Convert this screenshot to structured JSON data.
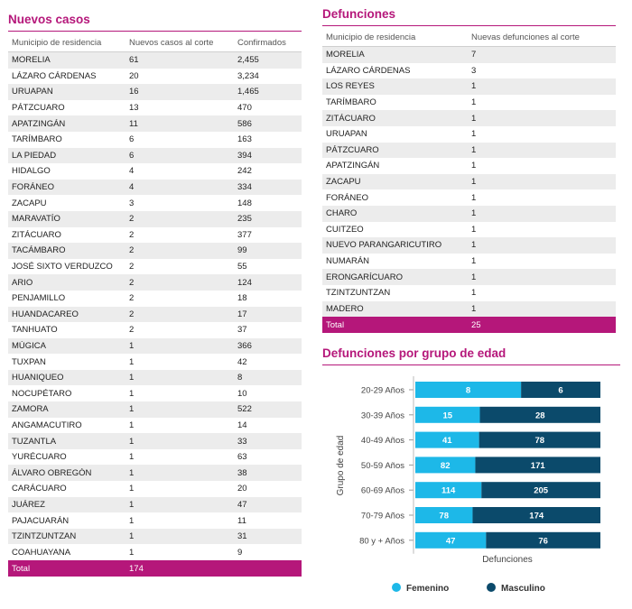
{
  "nuevos": {
    "title": "Nuevos casos",
    "headers": [
      "Municipio de residencia",
      "Nuevos casos al corte",
      "Confirmados"
    ],
    "rows": [
      [
        "MORELIA",
        "61",
        "2,455"
      ],
      [
        "LÁZARO CÁRDENAS",
        "20",
        "3,234"
      ],
      [
        "URUAPAN",
        "16",
        "1,465"
      ],
      [
        "PÁTZCUARO",
        "13",
        "470"
      ],
      [
        "APATZINGÁN",
        "11",
        "586"
      ],
      [
        "TARÍMBARO",
        "6",
        "163"
      ],
      [
        "LA PIEDAD",
        "6",
        "394"
      ],
      [
        "HIDALGO",
        "4",
        "242"
      ],
      [
        "FORÁNEO",
        "4",
        "334"
      ],
      [
        "ZACAPU",
        "3",
        "148"
      ],
      [
        "MARAVATÍO",
        "2",
        "235"
      ],
      [
        "ZITÁCUARO",
        "2",
        "377"
      ],
      [
        "TACÁMBARO",
        "2",
        "99"
      ],
      [
        "JOSÉ SIXTO VERDUZCO",
        "2",
        "55"
      ],
      [
        "ARIO",
        "2",
        "124"
      ],
      [
        "PENJAMILLO",
        "2",
        "18"
      ],
      [
        "HUANDACAREO",
        "2",
        "17"
      ],
      [
        "TANHUATO",
        "2",
        "37"
      ],
      [
        "MÚGICA",
        "1",
        "366"
      ],
      [
        "TUXPAN",
        "1",
        "42"
      ],
      [
        "HUANIQUEO",
        "1",
        "8"
      ],
      [
        "NOCUPÉTARO",
        "1",
        "10"
      ],
      [
        "ZAMORA",
        "1",
        "522"
      ],
      [
        "ANGAMACUTIRO",
        "1",
        "14"
      ],
      [
        "TUZANTLA",
        "1",
        "33"
      ],
      [
        "YURÉCUARO",
        "1",
        "63"
      ],
      [
        "ÁLVARO OBREGÓN",
        "1",
        "38"
      ],
      [
        "CARÁCUARO",
        "1",
        "20"
      ],
      [
        "JUÁREZ",
        "1",
        "47"
      ],
      [
        "PAJACUARÁN",
        "1",
        "11"
      ],
      [
        "TZINTZUNTZAN",
        "1",
        "31"
      ],
      [
        "COAHUAYANA",
        "1",
        "9"
      ]
    ],
    "total_label": "Total",
    "total_value": "174"
  },
  "defunciones": {
    "title": "Defunciones",
    "headers": [
      "Municipio de residencia",
      "Nuevas defunciones al corte"
    ],
    "rows": [
      [
        "MORELIA",
        "7"
      ],
      [
        "LÁZARO CÁRDENAS",
        "3"
      ],
      [
        "LOS REYES",
        "1"
      ],
      [
        "TARÍMBARO",
        "1"
      ],
      [
        "ZITÁCUARO",
        "1"
      ],
      [
        "URUAPAN",
        "1"
      ],
      [
        "PÁTZCUARO",
        "1"
      ],
      [
        "APATZINGÁN",
        "1"
      ],
      [
        "ZACAPU",
        "1"
      ],
      [
        "FORÁNEO",
        "1"
      ],
      [
        "CHARO",
        "1"
      ],
      [
        "CUITZEO",
        "1"
      ],
      [
        "NUEVO PARANGARICUTIRO",
        "1"
      ],
      [
        "NUMARÁN",
        "1"
      ],
      [
        "ERONGARÍCUARO",
        "1"
      ],
      [
        "TZINTZUNTZAN",
        "1"
      ],
      [
        "MADERO",
        "1"
      ]
    ],
    "total_label": "Total",
    "total_value": "25"
  },
  "chart_data": {
    "type": "bar",
    "orientation": "horizontal",
    "stacked": true,
    "normalized": true,
    "title": "Defunciones por grupo de edad",
    "xlabel": "Defunciones",
    "ylabel": "Grupo de edad",
    "categories": [
      "20-29 Años",
      "30-39 Años",
      "40-49 Años",
      "50-59 Años",
      "60-69 Años",
      "70-79 Años",
      "80 y + Años"
    ],
    "series": [
      {
        "name": "Femenino",
        "color": "#1db8e8",
        "values": [
          8,
          15,
          41,
          82,
          114,
          78,
          47
        ]
      },
      {
        "name": "Masculino",
        "color": "#0b4a6b",
        "values": [
          6,
          28,
          78,
          171,
          205,
          174,
          76
        ]
      }
    ],
    "legend_position": "bottom",
    "grid": false
  }
}
